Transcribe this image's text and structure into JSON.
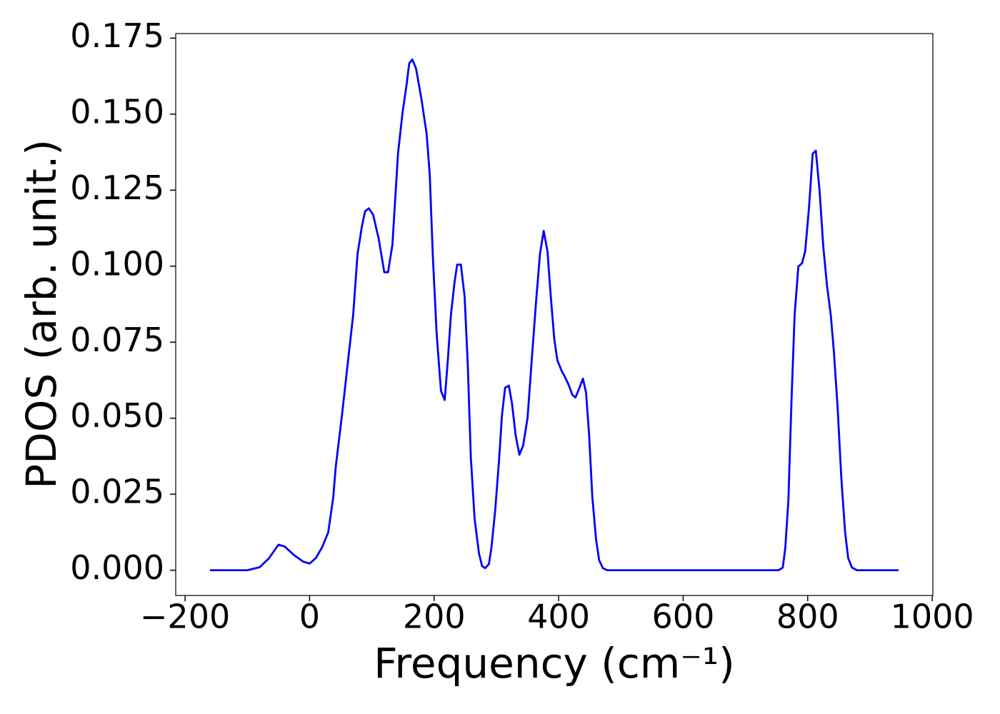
{
  "chart_data": {
    "type": "line",
    "xlabel": "Frequency (cm⁻¹)",
    "ylabel": "PDOS (arb. unit.)",
    "xlim": [
      -215,
      1001
    ],
    "ylim": [
      -0.0083,
      0.1765
    ],
    "xticks": [
      {
        "value": -200,
        "label": "−200"
      },
      0,
      200,
      400,
      600,
      800,
      1000
    ],
    "yticks": [
      {
        "value": 0,
        "label": "0.000"
      },
      {
        "value": 0.025,
        "label": "0.025"
      },
      {
        "value": 0.05,
        "label": "0.050"
      },
      {
        "value": 0.075,
        "label": "0.075"
      },
      {
        "value": 0.1,
        "label": "0.100"
      },
      {
        "value": 0.125,
        "label": "0.125"
      },
      {
        "value": 0.15,
        "label": "0.150"
      },
      {
        "value": 0.175,
        "label": "0.175"
      }
    ],
    "grid": false,
    "series": [
      {
        "name": "PDOS",
        "color": "#0000ff",
        "x": [
          -160,
          -100,
          -80,
          -65,
          -50,
          -40,
          -25,
          -10,
          0,
          10,
          20,
          30,
          38,
          42,
          52,
          58,
          70,
          77,
          84,
          89,
          95,
          102,
          111,
          120,
          126,
          133,
          142,
          149,
          156,
          160,
          165,
          171,
          180,
          188,
          193,
          198,
          204,
          211,
          217,
          222,
          227,
          233,
          237,
          243,
          249,
          254,
          259,
          265,
          272,
          277,
          282,
          288,
          292,
          298,
          304,
          309,
          314,
          320,
          325,
          331,
          337,
          343,
          350,
          358,
          364,
          370,
          376,
          382,
          387,
          393,
          398,
          405,
          410,
          416,
          422,
          427,
          433,
          439,
          444,
          449,
          454,
          460,
          465,
          471,
          478,
          753,
          760,
          764,
          769,
          774,
          779,
          785,
          791,
          796,
          802,
          808,
          813,
          819,
          825,
          831,
          837,
          842,
          848,
          854,
          860,
          865,
          871,
          879,
          946
        ],
        "values": [
          0,
          0,
          0.001,
          0.004,
          0.0084,
          0.0078,
          0.005,
          0.0028,
          0.0022,
          0.004,
          0.0075,
          0.0125,
          0.024,
          0.034,
          0.051,
          0.062,
          0.084,
          0.104,
          0.113,
          0.118,
          0.119,
          0.117,
          0.109,
          0.098,
          0.098,
          0.107,
          0.137,
          0.15,
          0.16,
          0.1667,
          0.168,
          0.165,
          0.1545,
          0.1435,
          0.13,
          0.103,
          0.078,
          0.059,
          0.056,
          0.069,
          0.084,
          0.095,
          0.1005,
          0.1005,
          0.09,
          0.068,
          0.037,
          0.017,
          0.0056,
          0.0014,
          0.0007,
          0.002,
          0.0073,
          0.0195,
          0.0354,
          0.051,
          0.06,
          0.0607,
          0.055,
          0.0443,
          0.038,
          0.041,
          0.05,
          0.0725,
          0.089,
          0.104,
          0.1116,
          0.105,
          0.091,
          0.076,
          0.069,
          0.0655,
          0.0636,
          0.061,
          0.0577,
          0.0568,
          0.0598,
          0.063,
          0.0584,
          0.0443,
          0.0244,
          0.0103,
          0.0033,
          0.0007,
          0,
          0,
          0.0009,
          0.0073,
          0.023,
          0.056,
          0.084,
          0.0999,
          0.101,
          0.105,
          0.119,
          0.137,
          0.138,
          0.125,
          0.1065,
          0.0936,
          0.084,
          0.072,
          0.0537,
          0.0303,
          0.0127,
          0.004,
          0.0009,
          0,
          0
        ]
      }
    ]
  }
}
